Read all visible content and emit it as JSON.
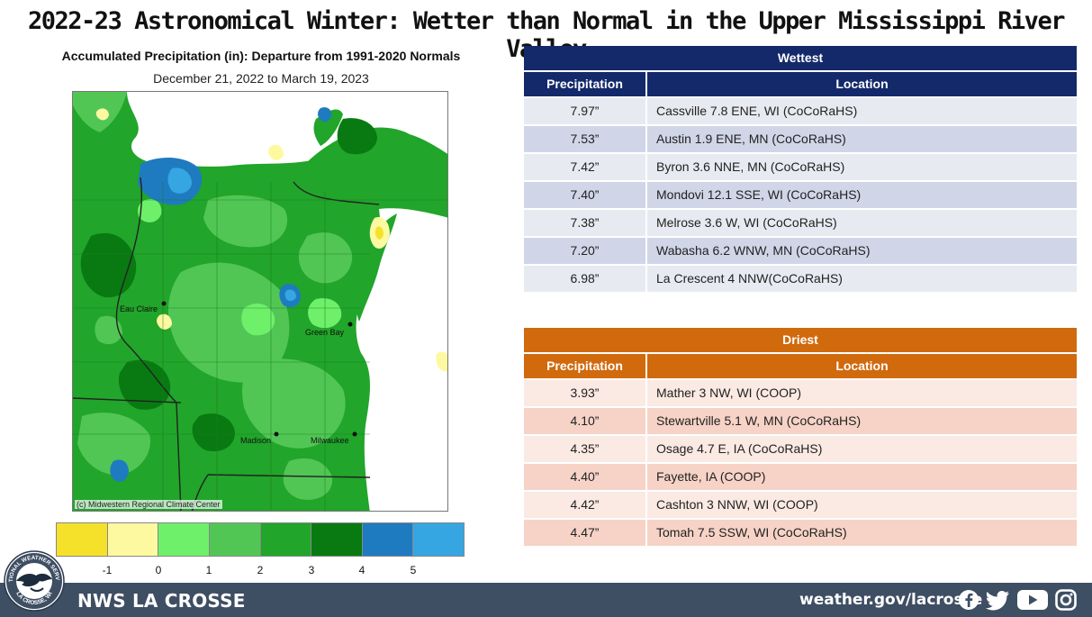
{
  "title": "2022-23 Astronomical Winter: Wetter than Normal in the Upper Mississippi River Valley",
  "map": {
    "title": "Accumulated Precipitation (in): Departure from 1991-2020 Normals",
    "dates": "December 21, 2022 to March 19, 2023",
    "credit": "(c) Midwestern Regional Climate Center",
    "cities": [
      "Eau Claire",
      "Green Bay",
      "Madison",
      "Milwaukee"
    ]
  },
  "legend": {
    "colors": [
      "#f6e12a",
      "#fdf9a0",
      "#6ef06a",
      "#52c655",
      "#21a52a",
      "#097a12",
      "#1f7bbf",
      "#35a6e1"
    ],
    "labels": [
      "-1",
      "0",
      "1",
      "2",
      "3",
      "4",
      "5"
    ]
  },
  "wettest": {
    "header": "Wettest",
    "col1": "Precipitation",
    "col2": "Location",
    "header_color": "#13296a",
    "row_colors": [
      "#e8eaf1",
      "#d0d6e8"
    ],
    "rows": [
      {
        "precip": "7.97”",
        "location": "Cassville 7.8 ENE, WI (CoCoRaHS)"
      },
      {
        "precip": "7.53”",
        "location": "Austin 1.9 ENE, MN (CoCoRaHS)"
      },
      {
        "precip": "7.42”",
        "location": "Byron 3.6 NNE, MN (CoCoRaHS)"
      },
      {
        "precip": "7.40”",
        "location": "Mondovi 12.1 SSE, WI (CoCoRaHS)"
      },
      {
        "precip": "7.38”",
        "location": "Melrose 3.6 W, WI (CoCoRaHS)"
      },
      {
        "precip": "7.20”",
        "location": "Wabasha 6.2 WNW, MN (CoCoRaHS)"
      },
      {
        "precip": "6.98”",
        "location": "La Crescent 4 NNW(CoCoRaHS)"
      }
    ]
  },
  "driest": {
    "header": "Driest",
    "col1": "Precipitation",
    "col2": "Location",
    "header_color": "#d06a0d",
    "row_colors": [
      "#fbe9e3",
      "#f6d3c6"
    ],
    "rows": [
      {
        "precip": "3.93”",
        "location": "Mather 3 NW, WI (COOP)"
      },
      {
        "precip": "4.10”",
        "location": "Stewartville 5.1 W, MN (CoCoRaHS)"
      },
      {
        "precip": "4.35”",
        "location": "Osage 4.7 E, IA (CoCoRaHS)"
      },
      {
        "precip": "4.40”",
        "location": "Fayette, IA (COOP)"
      },
      {
        "precip": "4.42”",
        "location": "Cashton 3 NNW, WI (COOP)"
      },
      {
        "precip": "4.47”",
        "location": "Tomah 7.5 SSW, WI (CoCoRaHS)"
      }
    ]
  },
  "footer": {
    "left": "NWS LA CROSSE",
    "right": "weather.gov/lacrosse",
    "social_icons": [
      "facebook-icon",
      "twitter-icon",
      "youtube-icon",
      "instagram-icon"
    ],
    "logo_text_top": "NATIONAL WEATHER SERVICE",
    "logo_text_bottom": "LA CROSSE, WI"
  }
}
